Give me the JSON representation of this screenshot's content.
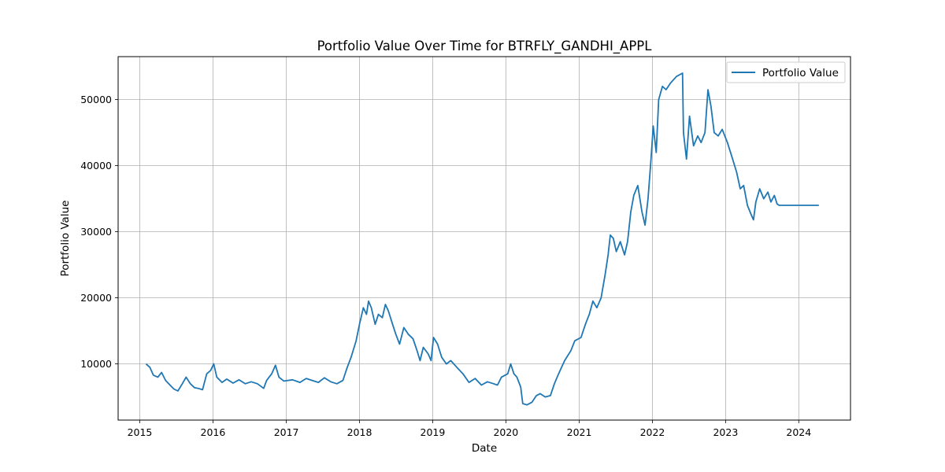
{
  "chart_data": {
    "type": "line",
    "title": "Portfolio Value Over Time for BTRFLY_GANDHI_APPL",
    "xlabel": "Date",
    "ylabel": "Portfolio Value",
    "xlim": [
      "2014-09-15",
      "2024-09-15"
    ],
    "ylim": [
      1500,
      56500
    ],
    "x_ticks": [
      "2015",
      "2016",
      "2017",
      "2018",
      "2019",
      "2020",
      "2021",
      "2022",
      "2023",
      "2024"
    ],
    "y_ticks": [
      "10000",
      "20000",
      "30000",
      "40000",
      "50000"
    ],
    "grid": true,
    "legend_position": "top-right",
    "line_color": "#1f77b4",
    "series": [
      {
        "name": "Portfolio Value",
        "points": [
          [
            "2015-02-01",
            10000
          ],
          [
            "2015-02-20",
            9500
          ],
          [
            "2015-03-10",
            8300
          ],
          [
            "2015-04-01",
            8000
          ],
          [
            "2015-04-20",
            8700
          ],
          [
            "2015-05-10",
            7500
          ],
          [
            "2015-06-01",
            6800
          ],
          [
            "2015-06-20",
            6200
          ],
          [
            "2015-07-10",
            5900
          ],
          [
            "2015-08-01",
            7000
          ],
          [
            "2015-08-20",
            8000
          ],
          [
            "2015-09-10",
            7000
          ],
          [
            "2015-10-01",
            6400
          ],
          [
            "2015-10-20",
            6300
          ],
          [
            "2015-11-10",
            6100
          ],
          [
            "2015-12-01",
            8500
          ],
          [
            "2015-12-20",
            9000
          ],
          [
            "2016-01-05",
            10000
          ],
          [
            "2016-01-20",
            8000
          ],
          [
            "2016-02-15",
            7200
          ],
          [
            "2016-03-10",
            7700
          ],
          [
            "2016-04-10",
            7100
          ],
          [
            "2016-05-10",
            7600
          ],
          [
            "2016-06-10",
            7000
          ],
          [
            "2016-07-10",
            7300
          ],
          [
            "2016-08-10",
            7000
          ],
          [
            "2016-09-10",
            6300
          ],
          [
            "2016-09-25",
            7500
          ],
          [
            "2016-10-20",
            8500
          ],
          [
            "2016-11-08",
            9800
          ],
          [
            "2016-11-25",
            8000
          ],
          [
            "2016-12-20",
            7400
          ],
          [
            "2017-02-01",
            7600
          ],
          [
            "2017-03-10",
            7200
          ],
          [
            "2017-04-10",
            7800
          ],
          [
            "2017-05-10",
            7500
          ],
          [
            "2017-06-10",
            7200
          ],
          [
            "2017-07-10",
            7900
          ],
          [
            "2017-08-10",
            7300
          ],
          [
            "2017-09-10",
            7000
          ],
          [
            "2017-10-10",
            7500
          ],
          [
            "2017-11-01",
            9500
          ],
          [
            "2017-11-20",
            11000
          ],
          [
            "2017-12-15",
            13500
          ],
          [
            "2018-01-01",
            16000
          ],
          [
            "2018-01-20",
            18500
          ],
          [
            "2018-02-05",
            17500
          ],
          [
            "2018-02-15",
            19500
          ],
          [
            "2018-03-01",
            18500
          ],
          [
            "2018-03-20",
            16000
          ],
          [
            "2018-04-05",
            17500
          ],
          [
            "2018-04-25",
            17000
          ],
          [
            "2018-05-10",
            19000
          ],
          [
            "2018-05-25",
            18000
          ],
          [
            "2018-06-15",
            16000
          ],
          [
            "2018-07-01",
            14500
          ],
          [
            "2018-07-20",
            13000
          ],
          [
            "2018-08-10",
            15500
          ],
          [
            "2018-09-01",
            14500
          ],
          [
            "2018-09-25",
            13800
          ],
          [
            "2018-10-15",
            12000
          ],
          [
            "2018-10-30",
            10500
          ],
          [
            "2018-11-15",
            12500
          ],
          [
            "2018-12-10",
            11500
          ],
          [
            "2018-12-24",
            10500
          ],
          [
            "2019-01-05",
            14000
          ],
          [
            "2019-01-25",
            13000
          ],
          [
            "2019-02-15",
            11000
          ],
          [
            "2019-03-10",
            10000
          ],
          [
            "2019-04-01",
            10500
          ],
          [
            "2019-05-01",
            9500
          ],
          [
            "2019-06-01",
            8500
          ],
          [
            "2019-07-01",
            7200
          ],
          [
            "2019-08-01",
            7800
          ],
          [
            "2019-09-01",
            6800
          ],
          [
            "2019-10-01",
            7300
          ],
          [
            "2019-11-01",
            7000
          ],
          [
            "2019-11-20",
            6800
          ],
          [
            "2019-12-10",
            8000
          ],
          [
            "2020-01-10",
            8500
          ],
          [
            "2020-01-25",
            10000
          ],
          [
            "2020-02-10",
            8500
          ],
          [
            "2020-02-25",
            8000
          ],
          [
            "2020-03-15",
            6500
          ],
          [
            "2020-03-25",
            4000
          ],
          [
            "2020-04-15",
            3800
          ],
          [
            "2020-05-10",
            4200
          ],
          [
            "2020-06-01",
            5200
          ],
          [
            "2020-06-20",
            5500
          ],
          [
            "2020-07-15",
            5000
          ],
          [
            "2020-08-10",
            5200
          ],
          [
            "2020-08-30",
            7000
          ],
          [
            "2020-09-20",
            8500
          ],
          [
            "2020-10-20",
            10500
          ],
          [
            "2020-11-20",
            12000
          ],
          [
            "2020-12-10",
            13500
          ],
          [
            "2021-01-10",
            14000
          ],
          [
            "2021-02-01",
            16000
          ],
          [
            "2021-02-20",
            17500
          ],
          [
            "2021-03-10",
            19500
          ],
          [
            "2021-03-30",
            18500
          ],
          [
            "2021-04-20",
            20000
          ],
          [
            "2021-05-10",
            23500
          ],
          [
            "2021-05-25",
            26500
          ],
          [
            "2021-06-05",
            29500
          ],
          [
            "2021-06-20",
            29000
          ],
          [
            "2021-07-05",
            27000
          ],
          [
            "2021-07-25",
            28500
          ],
          [
            "2021-08-15",
            26500
          ],
          [
            "2021-08-30",
            28500
          ],
          [
            "2021-09-15",
            33000
          ],
          [
            "2021-09-30",
            35500
          ],
          [
            "2021-10-20",
            37000
          ],
          [
            "2021-11-10",
            33000
          ],
          [
            "2021-11-25",
            31000
          ],
          [
            "2021-12-10",
            35000
          ],
          [
            "2021-12-25",
            41000
          ],
          [
            "2022-01-05",
            46000
          ],
          [
            "2022-01-20",
            42000
          ],
          [
            "2022-02-01",
            50000
          ],
          [
            "2022-02-20",
            52000
          ],
          [
            "2022-03-10",
            51500
          ],
          [
            "2022-04-01",
            52500
          ],
          [
            "2022-05-01",
            53500
          ],
          [
            "2022-05-31",
            54000
          ],
          [
            "2022-06-05",
            45000
          ],
          [
            "2022-06-20",
            41000
          ],
          [
            "2022-07-05",
            47500
          ],
          [
            "2022-07-25",
            43000
          ],
          [
            "2022-08-15",
            44500
          ],
          [
            "2022-09-01",
            43500
          ],
          [
            "2022-09-20",
            45000
          ],
          [
            "2022-10-05",
            51500
          ],
          [
            "2022-10-20",
            49000
          ],
          [
            "2022-11-05",
            45000
          ],
          [
            "2022-11-25",
            44500
          ],
          [
            "2022-12-15",
            45500
          ],
          [
            "2023-01-10",
            43500
          ],
          [
            "2023-02-05",
            41000
          ],
          [
            "2023-02-25",
            39000
          ],
          [
            "2023-03-15",
            36500
          ],
          [
            "2023-04-01",
            37000
          ],
          [
            "2023-04-20",
            34000
          ],
          [
            "2023-05-10",
            32500
          ],
          [
            "2023-05-20",
            31800
          ],
          [
            "2023-06-01",
            34500
          ],
          [
            "2023-06-20",
            36500
          ],
          [
            "2023-07-10",
            35000
          ],
          [
            "2023-07-31",
            36000
          ],
          [
            "2023-08-15",
            34500
          ],
          [
            "2023-09-01",
            35500
          ],
          [
            "2023-09-15",
            34200
          ],
          [
            "2023-09-25",
            34000
          ],
          [
            "2024-04-10",
            34000
          ]
        ]
      }
    ]
  }
}
